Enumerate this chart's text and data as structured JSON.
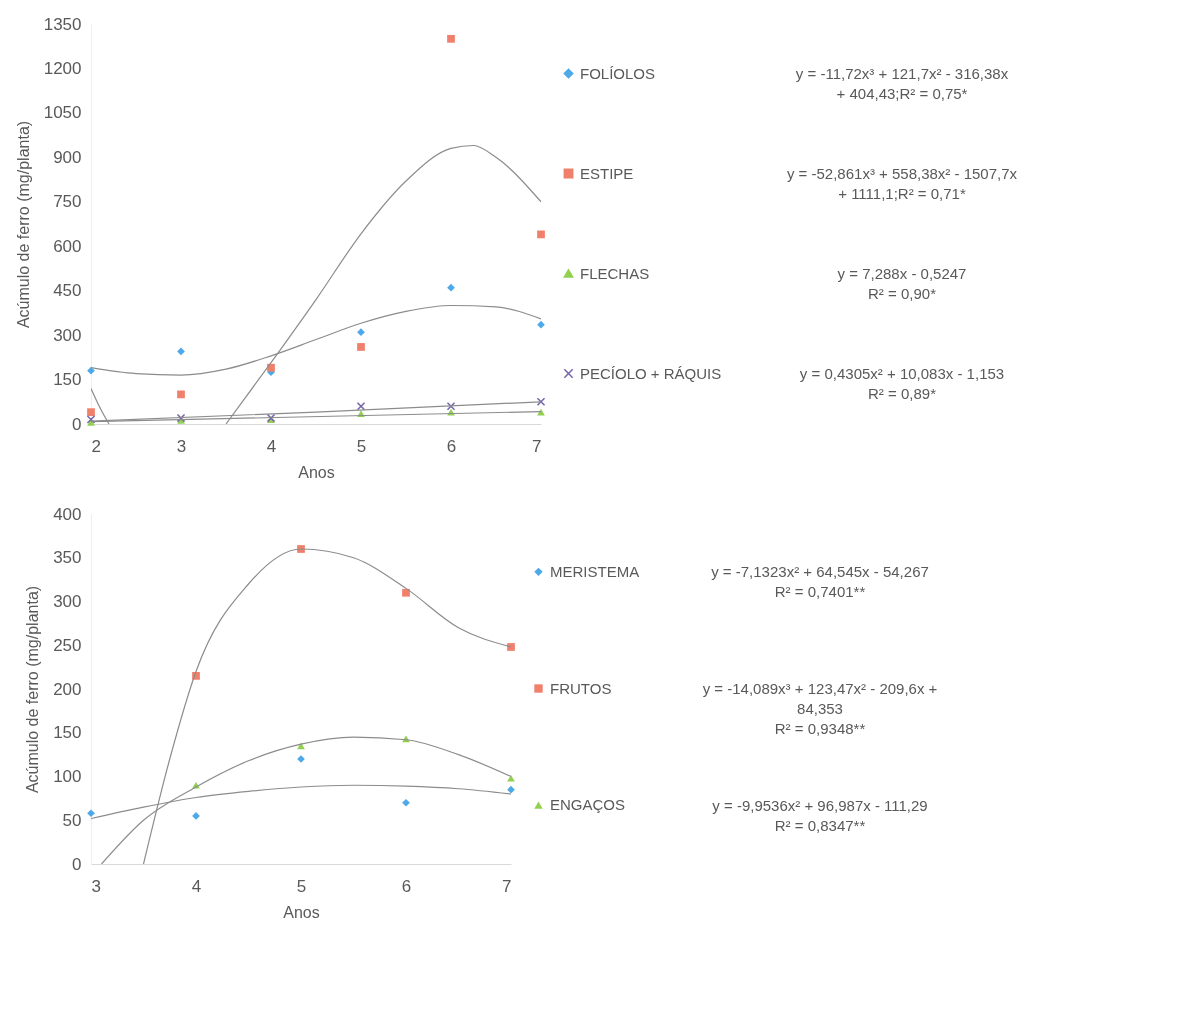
{
  "chart_data": [
    {
      "type": "scatter",
      "xlabel": "Anos",
      "ylabel": "Acúmulo de ferro (mg/planta)",
      "xlim": [
        2,
        7
      ],
      "xticks": [
        2,
        3,
        4,
        5,
        6,
        7
      ],
      "ylim": [
        0,
        1350
      ],
      "yticks": [
        0,
        150,
        300,
        450,
        600,
        750,
        900,
        1050,
        1200,
        1350
      ],
      "legend": "right",
      "annotations": [
        "y = -11,72x³ + 121,7x² - 316,38x\n+ 404,43;R² = 0,75*",
        "y = -52,861x³ + 558,38x² - 1507,7x\n+ 1111,1;R² = 0,71*",
        "y = 7,288x - 0,5247\nR² = 0,90*",
        "y = 0,4305x² + 10,083x - 1,153\nR² = 0,89*"
      ],
      "series": [
        {
          "name": "FOLÍOLOS",
          "color": "#4ea9e8",
          "marker": "diamond",
          "x": [
            2,
            3,
            4,
            5,
            6,
            7
          ],
          "values": [
            180,
            245,
            175,
            310,
            460,
            335
          ]
        },
        {
          "name": "ESTIPE",
          "color": "#f0806c",
          "marker": "square",
          "x": [
            2,
            3,
            4,
            5,
            6,
            7
          ],
          "values": [
            40,
            100,
            190,
            260,
            1300,
            640
          ]
        },
        {
          "name": "FLECHAS",
          "color": "#92d050",
          "marker": "triangle",
          "x": [
            2,
            3,
            4,
            5,
            6,
            7
          ],
          "values": [
            5,
            12,
            15,
            35,
            40,
            40
          ]
        },
        {
          "name": "PECÍOLO + RÁQUIS",
          "color": "#7464a8",
          "marker": "cross",
          "x": [
            2,
            3,
            4,
            5,
            6,
            7
          ],
          "values": [
            15,
            20,
            20,
            60,
            60,
            75
          ]
        },
        {
          "type": "line",
          "color": "#8c8c8c",
          "x": [
            2,
            2.5,
            3,
            3.5,
            4,
            4.5,
            5,
            5.5,
            6,
            6.5,
            7
          ],
          "values": [
            190,
            170,
            165,
            185,
            230,
            285,
            340,
            380,
            400,
            395,
            355
          ]
        },
        {
          "type": "line",
          "color": "#8c8c8c",
          "x": [
            2,
            2.1,
            2.2,
            3,
            3.5,
            4,
            4.5,
            5,
            5.5,
            6,
            6.25,
            6.5,
            7
          ],
          "values": [
            120,
            55,
            0,
            null,
            0,
            207,
            420,
            642,
            820,
            930,
            940,
            900,
            750
          ]
        },
        {
          "type": "line",
          "color": "#8c8c8c",
          "x": [
            2,
            7
          ],
          "values": [
            8,
            42
          ]
        },
        {
          "type": "line",
          "color": "#8c8c8c",
          "x": [
            2,
            4.5,
            7
          ],
          "values": [
            10,
            40,
            75
          ]
        }
      ]
    },
    {
      "type": "scatter",
      "xlabel": "Anos",
      "ylabel": "Acúmulo de ferro (mg/planta)",
      "xlim": [
        3,
        7
      ],
      "xticks": [
        3,
        4,
        5,
        6,
        7
      ],
      "ylim": [
        0,
        400
      ],
      "yticks": [
        0,
        50,
        100,
        150,
        200,
        250,
        300,
        350,
        400
      ],
      "legend": "right",
      "annotations": [
        "y = -7,1323x² + 64,545x - 54,267\nR² = 0,7401**",
        "y = -14,089x³ + 123,47x² - 209,6x +\n84,353\nR² = 0,9348**",
        "y = -9,9536x² + 96,987x - 111,29\nR² = 0,8347**"
      ],
      "series": [
        {
          "name": "MERISTEMA",
          "color": "#4ea9e8",
          "marker": "diamond",
          "x": [
            3,
            4,
            5,
            6,
            7
          ],
          "values": [
            58,
            55,
            120,
            70,
            85
          ]
        },
        {
          "name": "FRUTOS",
          "color": "#f0806c",
          "marker": "square",
          "x": [
            4,
            5,
            6,
            7
          ],
          "values": [
            215,
            360,
            310,
            248
          ]
        },
        {
          "name": "ENGAÇOS",
          "color": "#92d050",
          "marker": "triangle",
          "x": [
            4,
            5,
            6,
            7
          ],
          "values": [
            90,
            135,
            143,
            98
          ]
        },
        {
          "type": "line",
          "color": "#8c8c8c",
          "x": [
            3,
            3.5,
            4,
            4.5,
            5,
            5.5,
            6,
            6.5,
            7
          ],
          "values": [
            52,
            65,
            76,
            83,
            88,
            90,
            89,
            86,
            80
          ]
        },
        {
          "type": "line",
          "color": "#8c8c8c",
          "x": [
            3.5,
            3.75,
            4,
            4.5,
            5,
            5.5,
            6,
            6.5,
            7
          ],
          "values": [
            0,
            120,
            220,
            320,
            360,
            350,
            315,
            270,
            248
          ]
        },
        {
          "type": "line",
          "color": "#8c8c8c",
          "x": [
            3.1,
            3.5,
            4,
            4.5,
            5,
            5.5,
            6,
            6.5,
            7
          ],
          "values": [
            0,
            50,
            88,
            118,
            137,
            145,
            142,
            125,
            100
          ]
        }
      ]
    }
  ]
}
